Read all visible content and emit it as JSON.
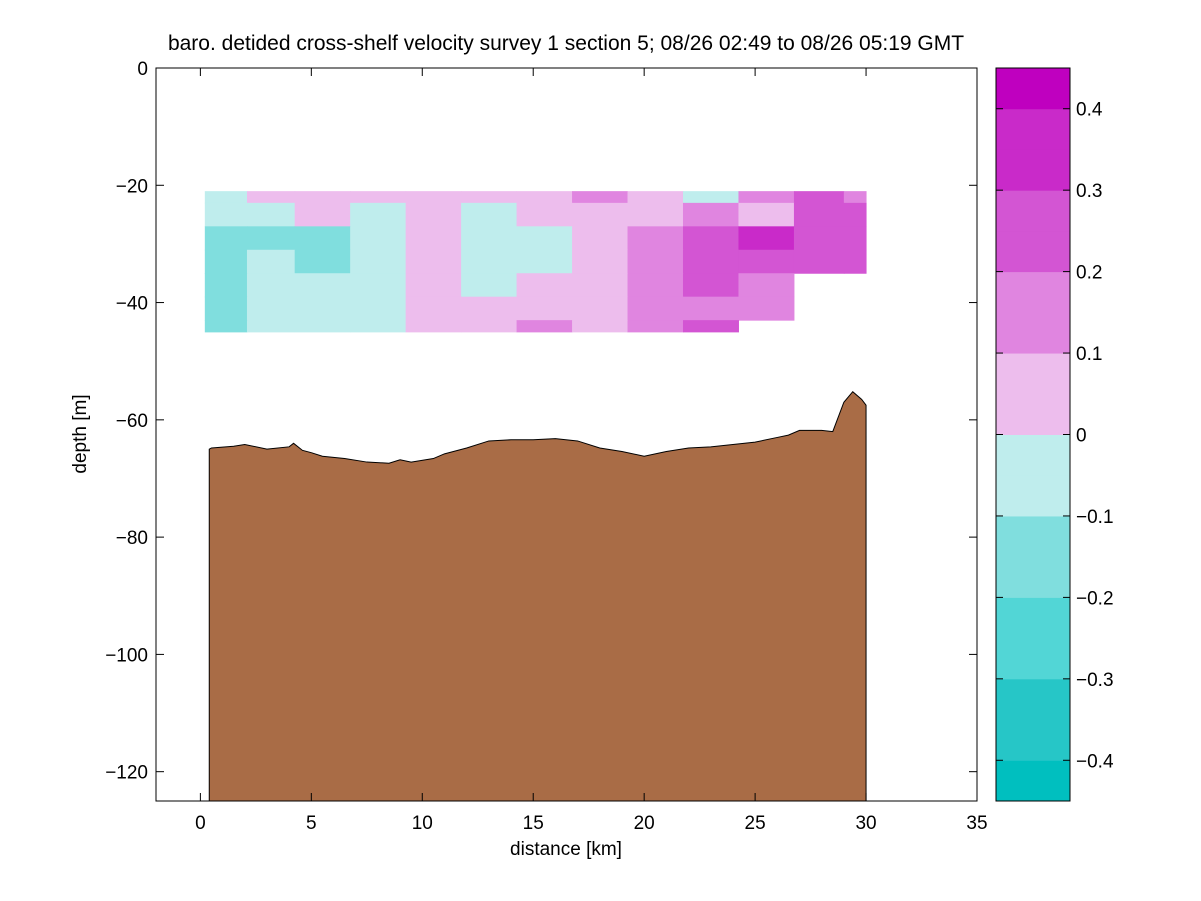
{
  "chart_data": {
    "type": "contour",
    "title": "baro. detided cross-shelf velocity survey 1 section 5; 08/26 02:49 to 08/26 05:19 GMT",
    "xlabel": "distance [km]",
    "ylabel": "depth [m]",
    "xlim": [
      -2,
      35
    ],
    "ylim": [
      -125,
      0
    ],
    "xticks": [
      0,
      5,
      10,
      15,
      20,
      25,
      30,
      35
    ],
    "yticks": [
      0,
      -20,
      -40,
      -60,
      -80,
      -100,
      -120
    ],
    "colorbar": {
      "levels": [
        -0.45,
        -0.4,
        -0.35,
        -0.3,
        -0.25,
        -0.2,
        -0.15,
        -0.1,
        -0.05,
        0,
        0.05,
        0.1,
        0.15,
        0.2,
        0.25,
        0.3,
        0.35,
        0.4,
        0.45
      ],
      "ticks": [
        -0.4,
        -0.3,
        -0.2,
        -0.1,
        0,
        0.1,
        0.2,
        0.3,
        0.4
      ],
      "colors": [
        "#00bfbf",
        "#26c6c7",
        "#52d6d6",
        "#80dede",
        "#bfeded",
        "#edbded",
        "#e085e0",
        "#d355d3",
        "#c92ac9",
        "#bf00bf"
      ]
    },
    "velocity_x": [
      1.2,
      3.0,
      5.5,
      8.0,
      10.5,
      13.0,
      15.5,
      18.0,
      20.5,
      23.0,
      25.5,
      28.0,
      30.0
    ],
    "velocity_depth": [
      -21,
      -25,
      -29,
      -33,
      -37,
      -41,
      -45
    ],
    "velocity": [
      [
        -0.05,
        0.05,
        0.05,
        0.05,
        0.05,
        0.05,
        0.05,
        0.15,
        0.05,
        -0.05,
        0.15,
        0.25,
        0.15
      ],
      [
        -0.05,
        -0.05,
        0.05,
        -0.05,
        0.05,
        -0.05,
        0.05,
        0.05,
        0.05,
        0.15,
        0.05,
        0.25,
        0.25
      ],
      [
        -0.15,
        -0.15,
        -0.15,
        -0.05,
        0.05,
        -0.05,
        -0.05,
        0.05,
        0.15,
        0.25,
        0.35,
        0.25,
        0.25
      ],
      [
        -0.15,
        -0.05,
        -0.15,
        -0.05,
        0.05,
        -0.05,
        -0.05,
        0.05,
        0.15,
        0.25,
        0.25,
        0.25,
        0.25
      ],
      [
        -0.15,
        -0.05,
        -0.05,
        -0.05,
        0.05,
        -0.05,
        0.05,
        0.05,
        0.15,
        0.25,
        0.15,
        null,
        null
      ],
      [
        -0.15,
        -0.05,
        -0.05,
        -0.05,
        0.05,
        0.05,
        0.05,
        0.05,
        0.15,
        0.15,
        0.15,
        null,
        null
      ],
      [
        -0.15,
        -0.05,
        -0.05,
        -0.05,
        0.05,
        0.05,
        0.15,
        0.05,
        0.15,
        0.25,
        null,
        null,
        null
      ]
    ],
    "bathymetry": {
      "distance": [
        0.4,
        0.5,
        1.5,
        2.0,
        3.0,
        4.0,
        4.2,
        4.6,
        5.0,
        5.5,
        6.5,
        7.5,
        8.5,
        9.0,
        9.5,
        10.5,
        11.0,
        12.0,
        13.0,
        14.0,
        15.0,
        16.0,
        17.0,
        18.0,
        19.0,
        20.0,
        21.0,
        22.0,
        23.0,
        24.0,
        25.0,
        26.0,
        26.5,
        27.0,
        28.0,
        28.5,
        29.0,
        29.4,
        29.8,
        30.0
      ],
      "depth": [
        -65,
        -64.8,
        -64.5,
        -64.2,
        -65.0,
        -64.6,
        -64.0,
        -65.2,
        -65.6,
        -66.2,
        -66.6,
        -67.2,
        -67.4,
        -66.8,
        -67.2,
        -66.6,
        -65.8,
        -64.8,
        -63.6,
        -63.4,
        -63.4,
        -63.2,
        -63.6,
        -64.8,
        -65.4,
        -66.2,
        -65.4,
        -64.8,
        -64.6,
        -64.2,
        -63.8,
        -63.0,
        -62.6,
        -61.8,
        -61.8,
        -62.0,
        -57.0,
        -55.2,
        -56.5,
        -57.5
      ],
      "color": "#a96c46"
    }
  }
}
